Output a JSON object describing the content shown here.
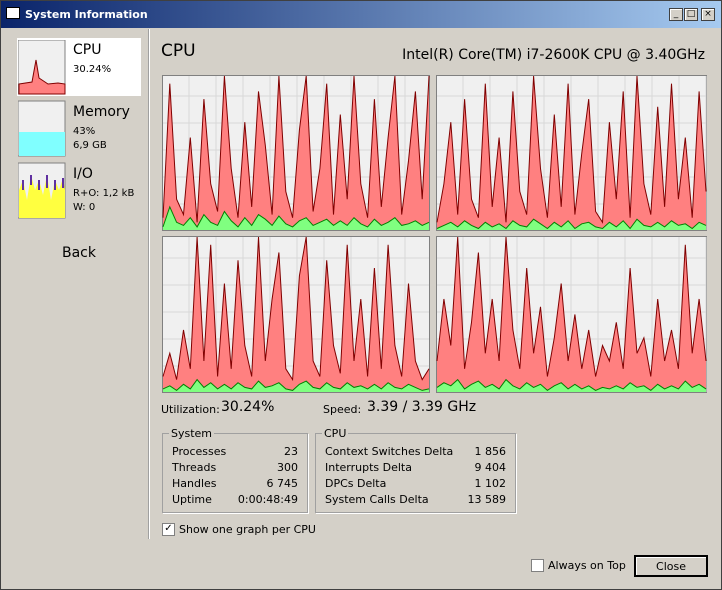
{
  "window": {
    "title": "System Information"
  },
  "sidebar": {
    "items": [
      {
        "label": "CPU",
        "lines": [
          "30.24%"
        ]
      },
      {
        "label": "Memory",
        "lines": [
          "43%",
          "6,9 GB"
        ]
      },
      {
        "label": "I/O",
        "lines": [
          "R+O: 1,2 kB",
          "W: 0"
        ]
      }
    ],
    "back": "Back"
  },
  "header": {
    "title": "CPU",
    "processor": "Intel(R) Core(TM) i7-2600K CPU @ 3.40GHz"
  },
  "graphs": {
    "ylim": [
      0,
      100
    ],
    "total_color": "#ff8080",
    "kernel_color": "#80ff80",
    "cpus": [
      {
        "total": [
          8,
          95,
          20,
          10,
          60,
          5,
          85,
          30,
          12,
          100,
          40,
          8,
          70,
          15,
          90,
          55,
          10,
          100,
          25,
          8,
          65,
          100,
          12,
          40,
          95,
          10,
          75,
          20,
          100,
          30,
          8,
          85,
          15,
          60,
          100,
          10,
          45,
          90,
          20,
          100
        ],
        "kernel": [
          2,
          15,
          5,
          3,
          8,
          2,
          10,
          5,
          3,
          12,
          6,
          2,
          8,
          3,
          10,
          7,
          3,
          9,
          4,
          2,
          6,
          8,
          3,
          5,
          7,
          3,
          6,
          3,
          8,
          4,
          2,
          7,
          3,
          5,
          8,
          3,
          4,
          6,
          3,
          5
        ]
      },
      {
        "total": [
          5,
          30,
          70,
          10,
          85,
          20,
          8,
          95,
          15,
          60,
          5,
          90,
          25,
          10,
          100,
          40,
          8,
          75,
          15,
          95,
          10,
          50,
          85,
          12,
          5,
          70,
          20,
          90,
          8,
          100,
          30,
          10,
          80,
          15,
          95,
          20,
          60,
          8,
          90,
          25
        ],
        "kernel": [
          1,
          3,
          5,
          2,
          6,
          3,
          1,
          5,
          2,
          4,
          1,
          6,
          3,
          2,
          7,
          4,
          1,
          5,
          2,
          6,
          1,
          4,
          5,
          2,
          1,
          5,
          2,
          6,
          1,
          7,
          3,
          2,
          5,
          2,
          6,
          3,
          4,
          1,
          5,
          3
        ]
      },
      {
        "total": [
          10,
          25,
          8,
          40,
          15,
          100,
          20,
          95,
          10,
          70,
          15,
          85,
          30,
          10,
          100,
          20,
          60,
          90,
          15,
          8,
          75,
          100,
          20,
          10,
          85,
          30,
          12,
          95,
          20,
          60,
          10,
          80,
          15,
          95,
          30,
          10,
          70,
          20,
          8,
          15
        ],
        "kernel": [
          2,
          4,
          1,
          5,
          2,
          8,
          3,
          6,
          2,
          5,
          2,
          6,
          3,
          2,
          7,
          3,
          4,
          6,
          2,
          1,
          5,
          7,
          3,
          2,
          6,
          3,
          2,
          6,
          3,
          4,
          2,
          5,
          2,
          6,
          3,
          2,
          5,
          3,
          1,
          2
        ]
      },
      {
        "total": [
          20,
          60,
          30,
          100,
          15,
          45,
          90,
          25,
          60,
          20,
          100,
          40,
          15,
          80,
          25,
          55,
          10,
          35,
          70,
          20,
          50,
          15,
          40,
          10,
          30,
          20,
          45,
          15,
          80,
          25,
          35,
          10,
          60,
          20,
          40,
          15,
          95,
          25,
          60,
          20
        ],
        "kernel": [
          3,
          6,
          4,
          8,
          2,
          5,
          7,
          3,
          5,
          2,
          8,
          4,
          2,
          6,
          3,
          5,
          1,
          4,
          6,
          2,
          5,
          2,
          4,
          1,
          3,
          2,
          4,
          2,
          6,
          3,
          4,
          1,
          5,
          2,
          4,
          2,
          7,
          3,
          5,
          2
        ]
      }
    ]
  },
  "stats": {
    "utilization_label": "Utilization:",
    "utilization": "30.24%",
    "speed_label": "Speed:",
    "speed": "3.39 / 3.39 GHz"
  },
  "system": {
    "title": "System",
    "rows": [
      [
        "Processes",
        "23"
      ],
      [
        "Threads",
        "300"
      ],
      [
        "Handles",
        "6 745"
      ],
      [
        "Uptime",
        "0:00:48:49"
      ]
    ]
  },
  "cpu_box": {
    "title": "CPU",
    "rows": [
      [
        "Context Switches Delta",
        "1 856"
      ],
      [
        "Interrupts Delta",
        "9 404"
      ],
      [
        "DPCs Delta",
        "1 102"
      ],
      [
        "System Calls Delta",
        "13 589"
      ]
    ]
  },
  "options": {
    "one_graph_per_cpu": "Show one graph per CPU",
    "always_on_top": "Always on Top",
    "close": "Close"
  }
}
